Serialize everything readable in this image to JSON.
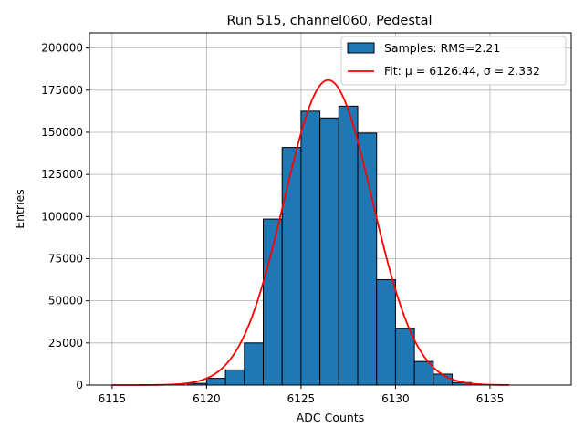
{
  "chart_data": {
    "type": "bar",
    "title": "Run 515, channel060, Pedestal",
    "xlabel": "ADC Counts",
    "ylabel": "Entries",
    "xlim": [
      6113.8,
      6139.3
    ],
    "ylim": [
      0,
      209000
    ],
    "grid": true,
    "legend_position": "top-right",
    "x_ticks": [
      6115,
      6120,
      6125,
      6130,
      6135
    ],
    "x_tick_labels": [
      "6115",
      "6120",
      "6125",
      "6130",
      "6135"
    ],
    "y_ticks": [
      0,
      25000,
      50000,
      75000,
      100000,
      125000,
      150000,
      175000,
      200000
    ],
    "y_tick_labels": [
      "0",
      "25000",
      "50000",
      "75000",
      "100000",
      "125000",
      "150000",
      "175000",
      "200000"
    ],
    "histogram": {
      "bin_width": 1,
      "bin_edges_start": [
        6119,
        6120,
        6121,
        6122,
        6123,
        6124,
        6125,
        6126,
        6127,
        6128,
        6129,
        6130,
        6131,
        6132,
        6133
      ],
      "counts": [
        1000,
        4000,
        9000,
        25000,
        98500,
        141000,
        162500,
        158500,
        165500,
        149500,
        62500,
        33500,
        14000,
        6500,
        1500
      ],
      "label": "Samples: RMS=2.21",
      "color": "#1f77b4",
      "edge_color": "#000000"
    },
    "fit": {
      "label": "Fit: μ = 6126.44, σ = 2.332",
      "mu": 6126.44,
      "sigma": 2.332,
      "amplitude": 181000,
      "x_range": [
        6115,
        6136
      ],
      "color": "#ff0000"
    }
  }
}
